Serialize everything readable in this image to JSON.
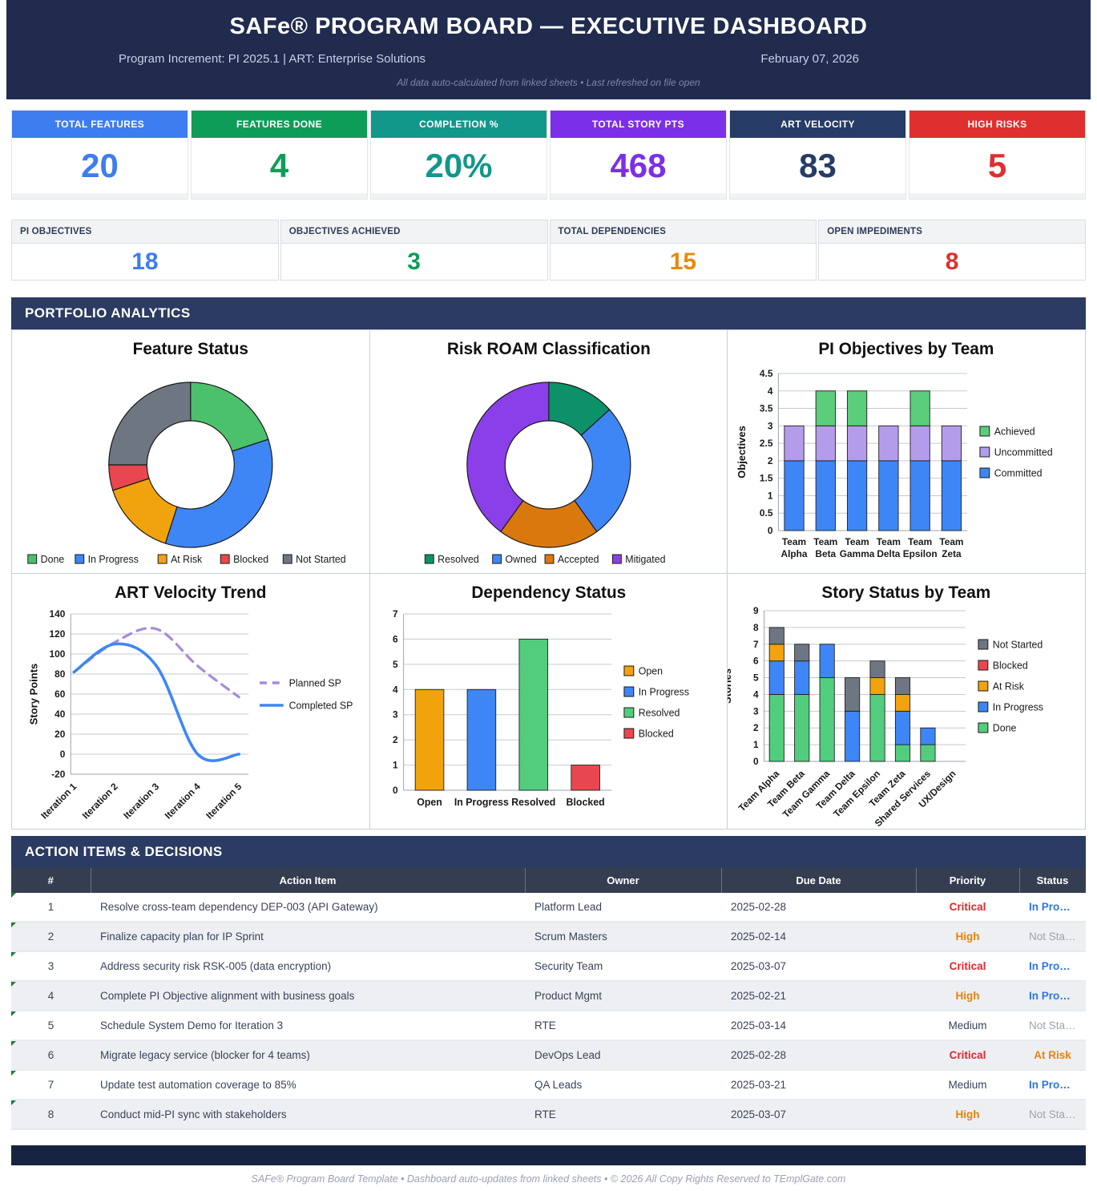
{
  "header": {
    "title": "SAFe® PROGRAM BOARD — EXECUTIVE DASHBOARD",
    "subtitle_left": "Program Increment: PI 2025.1  |  ART: Enterprise Solutions",
    "date": "February 07, 2026",
    "note": "All data auto-calculated from linked sheets  •  Last refreshed on file open"
  },
  "kpis_row1": [
    {
      "label": "TOTAL FEATURES",
      "value": "20",
      "color": "#3D7DF0"
    },
    {
      "label": "FEATURES DONE",
      "value": "4",
      "color": "#0E9D58"
    },
    {
      "label": "COMPLETION %",
      "value": "20%",
      "color": "#12978B"
    },
    {
      "label": "TOTAL STORY PTS",
      "value": "468",
      "color": "#7C2FE8"
    },
    {
      "label": "ART VELOCITY",
      "value": "83",
      "color": "#273C66"
    },
    {
      "label": "HIGH RISKS",
      "value": "5",
      "color": "#DF2F2F"
    }
  ],
  "kpis_row2": [
    {
      "label": "PI OBJECTIVES",
      "value": "18",
      "color": "#3D7DF0"
    },
    {
      "label": "OBJECTIVES ACHIEVED",
      "value": "3",
      "color": "#0E9D58"
    },
    {
      "label": "TOTAL DEPENDENCIES",
      "value": "15",
      "color": "#E8890C"
    },
    {
      "label": "OPEN IMPEDIMENTS",
      "value": "8",
      "color": "#DF2F2F"
    }
  ],
  "sections": {
    "analytics": "PORTFOLIO ANALYTICS",
    "actions": "ACTION ITEMS & DECISIONS"
  },
  "chart_data": [
    {
      "type": "donut",
      "title": "Feature Status",
      "labels": [
        "Done",
        "In Progress",
        "At Risk",
        "Blocked",
        "Not Started"
      ],
      "values": [
        4,
        7,
        3,
        1,
        5
      ],
      "colors": [
        "#4CC16C",
        "#3E86F5",
        "#F0A30C",
        "#E8474F",
        "#6E7681"
      ],
      "legend_position": "bottom"
    },
    {
      "type": "donut",
      "title": "Risk ROAM Classification",
      "labels": [
        "Resolved",
        "Owned",
        "Accepted",
        "Mitigated"
      ],
      "values": [
        2,
        4,
        3,
        6
      ],
      "colors": [
        "#0C9169",
        "#3E86F5",
        "#D9790D",
        "#8B3FE8"
      ],
      "legend_position": "bottom"
    },
    {
      "type": "stacked_bar",
      "title": "PI Objectives by Team",
      "categories": [
        "Team Alpha",
        "Team Beta",
        "Team Gamma",
        "Team Delta",
        "Team Epsilon",
        "Team Zeta"
      ],
      "series": [
        {
          "name": "Committed",
          "color": "#3E86F5",
          "values": [
            2,
            2,
            2,
            2,
            2,
            2
          ]
        },
        {
          "name": "Uncommitted",
          "color": "#B39DEB",
          "values": [
            1,
            1,
            1,
            1,
            1,
            1
          ]
        },
        {
          "name": "Achieved",
          "color": "#5BCD7B",
          "values": [
            0,
            1,
            1,
            0,
            1,
            0
          ]
        }
      ],
      "ylabel": "Objectives",
      "ylim": [
        0,
        4.5
      ],
      "ystep": 0.5,
      "x_label_style": "two-line",
      "legend_position": "right",
      "grid": true
    },
    {
      "type": "line",
      "title": "ART Velocity Trend",
      "x": [
        "Iteration 1",
        "Iteration 2",
        "Iteration 3",
        "Iteration 4",
        "Iteration 5"
      ],
      "series": [
        {
          "name": "Planned SP",
          "color": "#A78BDB",
          "dash": true,
          "values": [
            82,
            112,
            125,
            88,
            57
          ]
        },
        {
          "name": "Completed SP",
          "color": "#3E86F5",
          "dash": false,
          "values": [
            82,
            110,
            88,
            0,
            0
          ]
        }
      ],
      "ylabel": "Story Points",
      "ylim": [
        -20,
        140
      ],
      "ystep": 20,
      "x_label_style": "rotated",
      "legend_position": "right",
      "grid": true,
      "smooth": true
    },
    {
      "type": "bar",
      "title": "Dependency Status",
      "categories": [
        "Open",
        "In Progress",
        "Resolved",
        "Blocked"
      ],
      "values": [
        4,
        4,
        6,
        1
      ],
      "colors": [
        "#F0A30C",
        "#3E86F5",
        "#52CD7E",
        "#E8474F"
      ],
      "ylim": [
        0,
        7
      ],
      "ystep": 1,
      "x_label_style": "horizontal",
      "legend_position": "right",
      "grid": true
    },
    {
      "type": "stacked_bar",
      "title": "Story Status by Team",
      "categories": [
        "Team Alpha",
        "Team Beta",
        "Team Gamma",
        "Team Delta",
        "Team Epsilon",
        "Team Zeta",
        "Shared Services",
        "UX/Design"
      ],
      "series": [
        {
          "name": "Done",
          "color": "#52CD7E",
          "values": [
            4,
            4,
            5,
            0,
            4,
            1,
            1,
            0
          ]
        },
        {
          "name": "In Progress",
          "color": "#3E86F5",
          "values": [
            2,
            2,
            2,
            3,
            0,
            2,
            1,
            0
          ]
        },
        {
          "name": "At Risk",
          "color": "#F0A30C",
          "values": [
            1,
            0,
            0,
            0,
            1,
            1,
            0,
            0
          ]
        },
        {
          "name": "Blocked",
          "color": "#E8474F",
          "values": [
            0,
            0,
            0,
            0,
            0,
            0,
            0,
            0
          ]
        },
        {
          "name": "Not Started",
          "color": "#6E7681",
          "values": [
            1,
            1,
            0,
            2,
            1,
            1,
            0,
            0
          ]
        }
      ],
      "ylabel": "Stories",
      "ylim": [
        0,
        9
      ],
      "ystep": 1,
      "x_label_style": "rotated",
      "legend_position": "right",
      "grid": true
    }
  ],
  "table": {
    "headers": [
      "#",
      "Action Item",
      "Owner",
      "Due Date",
      "Priority",
      "Status"
    ],
    "rows": [
      {
        "num": "1",
        "item": "Resolve cross-team dependency DEP-003 (API Gateway)",
        "owner": "Platform Lead",
        "due": "2025-02-28",
        "priority": "Critical",
        "status": "In Progress"
      },
      {
        "num": "2",
        "item": "Finalize capacity plan for IP Sprint",
        "owner": "Scrum Masters",
        "due": "2025-02-14",
        "priority": "High",
        "status": "Not Started"
      },
      {
        "num": "3",
        "item": "Address security risk RSK-005 (data encryption)",
        "owner": "Security Team",
        "due": "2025-03-07",
        "priority": "Critical",
        "status": "In Progress"
      },
      {
        "num": "4",
        "item": "Complete PI Objective alignment with business goals",
        "owner": "Product Mgmt",
        "due": "2025-02-21",
        "priority": "High",
        "status": "In Progress"
      },
      {
        "num": "5",
        "item": "Schedule System Demo for Iteration 3",
        "owner": "RTE",
        "due": "2025-03-14",
        "priority": "Medium",
        "status": "Not Started"
      },
      {
        "num": "6",
        "item": "Migrate legacy service (blocker for 4 teams)",
        "owner": "DevOps Lead",
        "due": "2025-02-28",
        "priority": "Critical",
        "status": "At Risk"
      },
      {
        "num": "7",
        "item": "Update test automation coverage to 85%",
        "owner": "QA Leads",
        "due": "2025-03-21",
        "priority": "Medium",
        "status": "In Progress"
      },
      {
        "num": "8",
        "item": "Conduct mid-PI sync with stakeholders",
        "owner": "RTE",
        "due": "2025-03-07",
        "priority": "High",
        "status": "Not Started"
      }
    ],
    "priority_colors": {
      "Critical": "#E0262E",
      "High": "#E8820C",
      "Medium": "#39435A"
    },
    "priority_bold": [
      "Critical",
      "High"
    ],
    "status_colors": {
      "In Progress": "#2E75E8",
      "Not Started": "#9CA3AF",
      "At Risk": "#E8820C"
    },
    "status_bold": [
      "In Progress",
      "At Risk"
    ]
  },
  "footer": "SAFe® Program Board Template  •  Dashboard auto-updates from linked sheets  •  © 2026 All Copy Rights Reserved to TEmplGate.com"
}
